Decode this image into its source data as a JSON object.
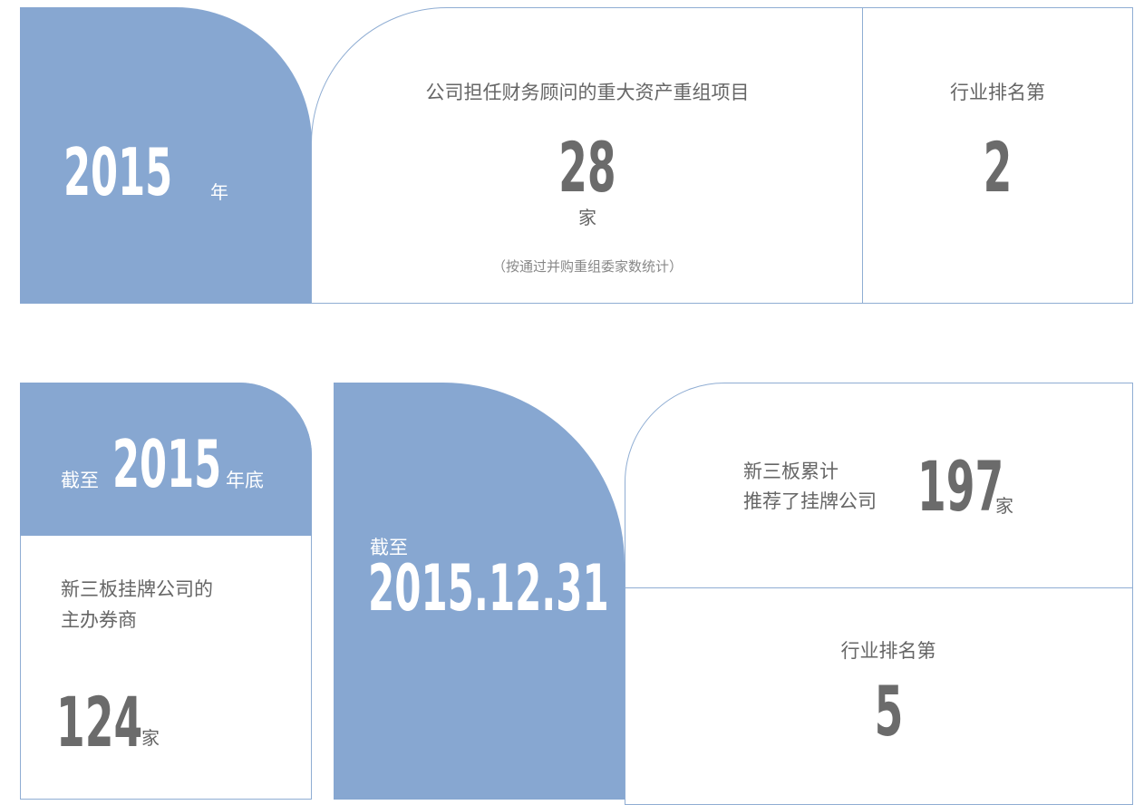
{
  "top": {
    "year_block": {
      "year": "2015",
      "unit": "年"
    },
    "deals": {
      "title": "公司担任财务顾问的重大资产重组项目",
      "value": "28",
      "unit": "家",
      "note": "（按通过并购重组委家数统计）"
    },
    "rank": {
      "label": "行业排名第",
      "value": "2"
    }
  },
  "bottom": {
    "sponsor": {
      "prefix": "截至",
      "year": "2015",
      "suffix": "年底",
      "desc": [
        "新三板挂牌公司的",
        "主办券商"
      ],
      "value": "124",
      "unit": "家"
    },
    "date_block": {
      "prefix": "截至",
      "date": "2015.12.31"
    },
    "recommended": {
      "desc": [
        "新三板累计",
        "推荐了挂牌公司"
      ],
      "value": "197",
      "unit": "家"
    },
    "rank": {
      "label": "行业排名第",
      "value": "5"
    }
  }
}
